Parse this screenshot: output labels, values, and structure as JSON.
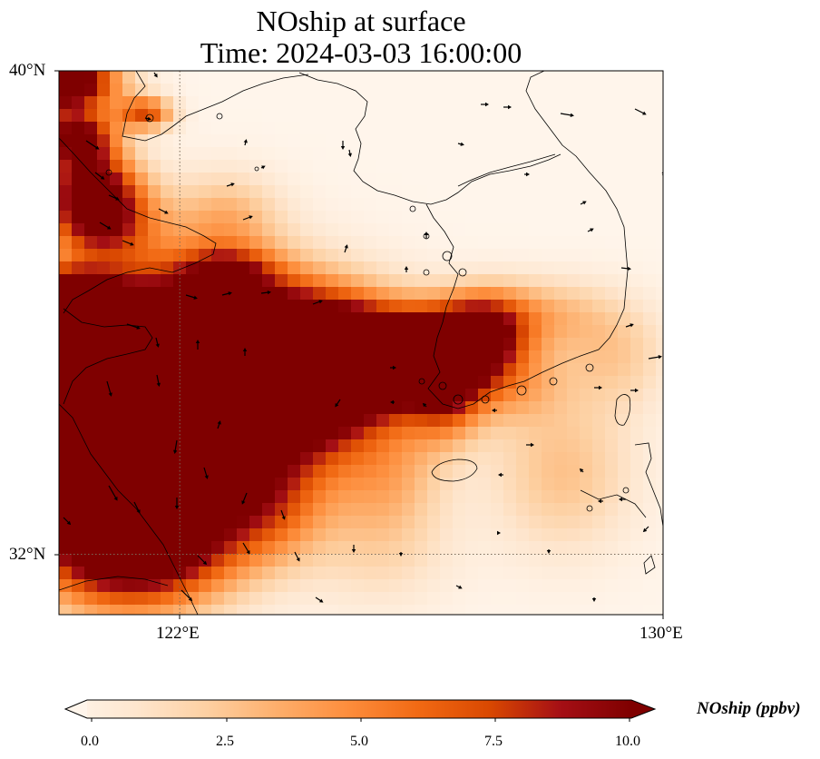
{
  "title": {
    "line1": "NOship at surface",
    "line2": "Time: 2024-03-03 16:00:00"
  },
  "axes": {
    "lat_labels": [
      "40°N",
      "32°N"
    ],
    "lon_labels": [
      "122°E",
      "130°E"
    ],
    "lat_range": [
      31,
      40
    ],
    "lon_range": [
      120,
      130
    ],
    "gridlines": true
  },
  "colorbar": {
    "label": "NOship (ppbv)",
    "ticks": [
      "0.0",
      "2.5",
      "5.0",
      "7.5",
      "10.0"
    ],
    "min": 0,
    "max": 10,
    "extend": "both",
    "colormap": [
      "#fff5eb",
      "#fee6ce",
      "#fdd0a2",
      "#fdae6b",
      "#fd8d3c",
      "#f16913",
      "#d94801",
      "#a50f15",
      "#7f0000"
    ]
  },
  "colors": {
    "coast": "#000000",
    "grid": "#7a6a5a",
    "low": "#fff5eb",
    "high": "#7f0000"
  }
}
